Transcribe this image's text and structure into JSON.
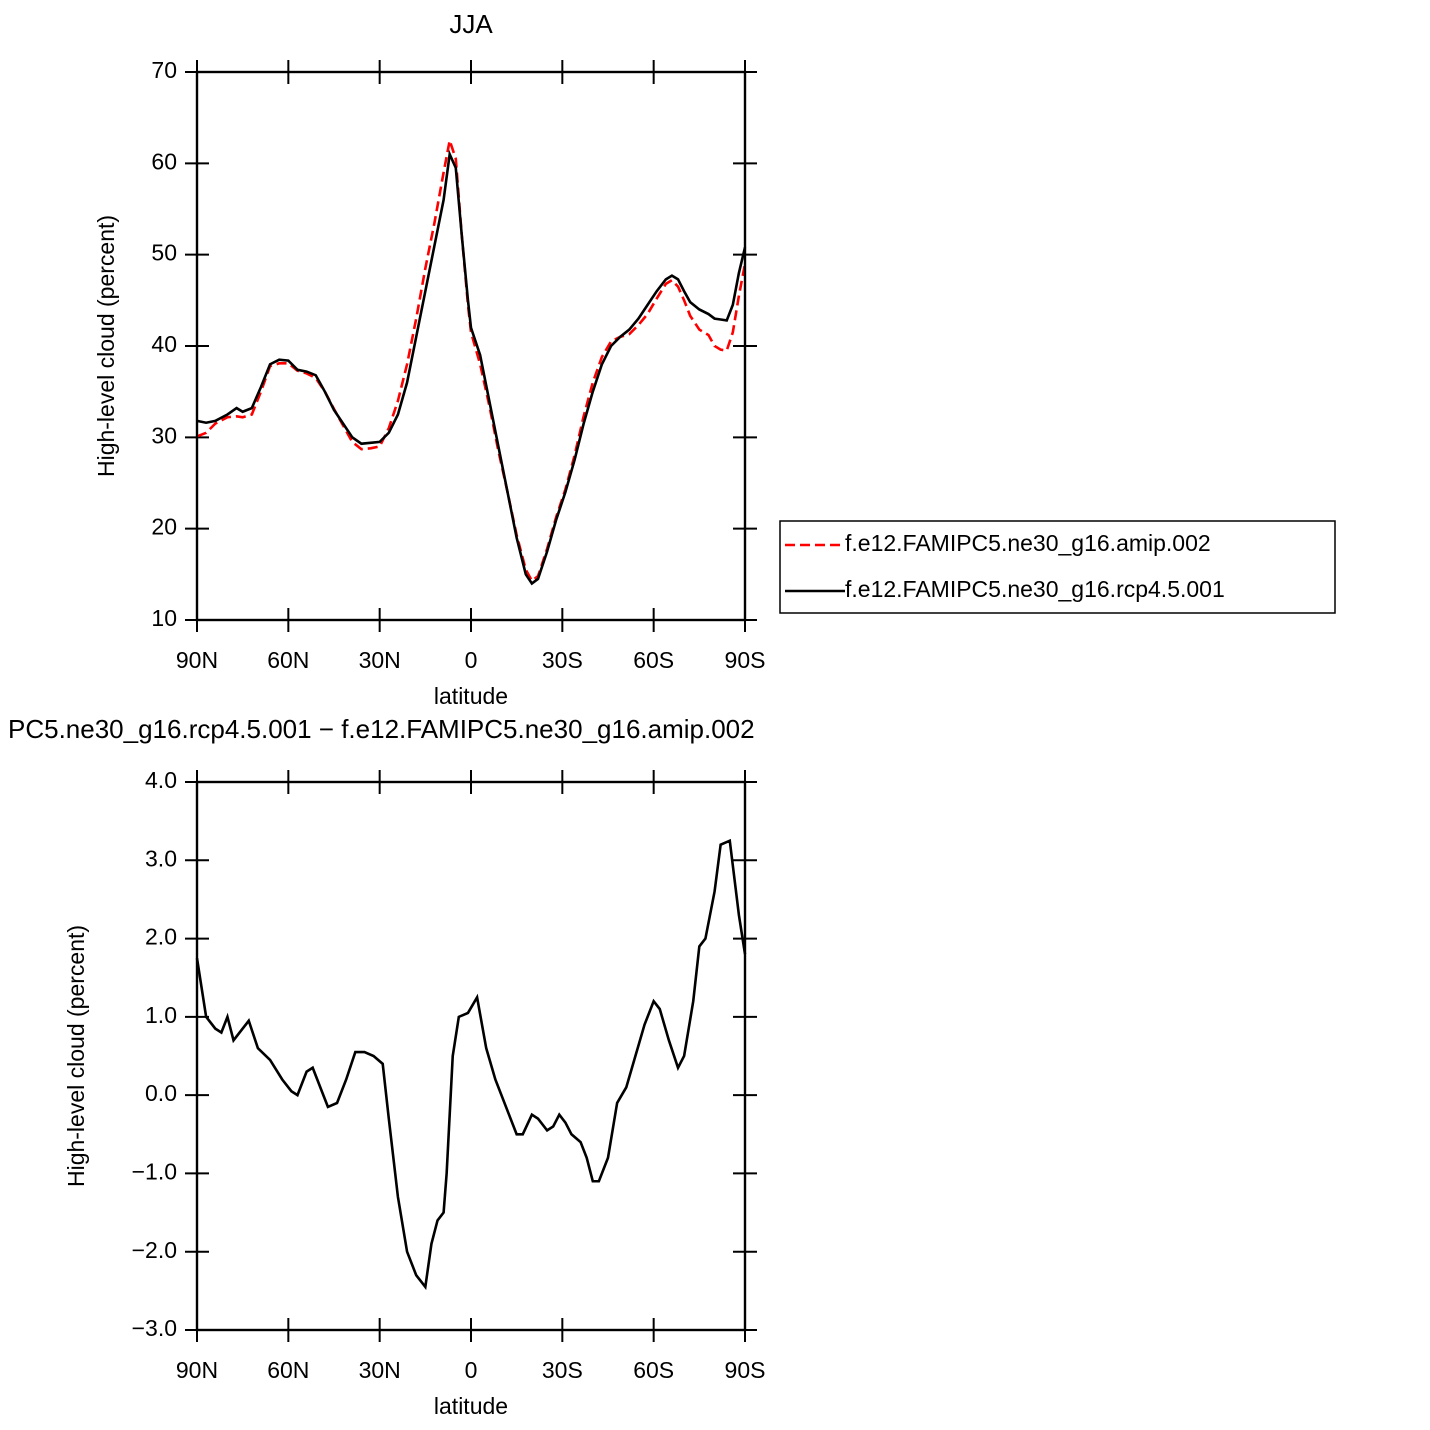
{
  "chart_data": [
    {
      "type": "line",
      "title": "JJA",
      "xlabel": "latitude",
      "ylabel": "High-level cloud (percent)",
      "xlim": [
        90,
        -90
      ],
      "ylim": [
        10,
        70
      ],
      "xticks": [
        {
          "value": 90,
          "label": "90N"
        },
        {
          "value": 60,
          "label": "60N"
        },
        {
          "value": 30,
          "label": "30N"
        },
        0,
        {
          "value": -30,
          "label": "30S"
        },
        {
          "value": -60,
          "label": "60S"
        },
        {
          "value": -90,
          "label": "90S"
        }
      ],
      "yticks": [
        10,
        20,
        30,
        40,
        50,
        60,
        70
      ],
      "legend": "right",
      "x": [
        90,
        87,
        84,
        80,
        77,
        75,
        72,
        69,
        66,
        63,
        60,
        57,
        54,
        51,
        48,
        45,
        42,
        39,
        36,
        33,
        30,
        27,
        24,
        21,
        18,
        15,
        12,
        9,
        7,
        5,
        3,
        1,
        0,
        -3,
        -6,
        -9,
        -12,
        -15,
        -18,
        -20,
        -22,
        -25,
        -28,
        -31,
        -34,
        -37,
        -40,
        -43,
        -46,
        -49,
        -52,
        -55,
        -58,
        -61,
        -64,
        -66,
        -68,
        -70,
        -72,
        -75,
        -78,
        -80,
        -82,
        -84,
        -86,
        -88,
        -90
      ],
      "series": [
        {
          "name": "f.e12.FAMIPC5.ne30_g16.amip.002",
          "color": "#ff0000",
          "line_style": "dashed",
          "values": [
            30.1,
            30.5,
            31.5,
            32.2,
            32.3,
            32.2,
            32.5,
            35,
            37.8,
            38.1,
            38.1,
            37.3,
            37.0,
            36.5,
            35.0,
            33.1,
            31.3,
            29.5,
            28.7,
            28.8,
            29.0,
            31.0,
            34.0,
            38.0,
            43.0,
            48.5,
            53.5,
            59.0,
            62.5,
            60.5,
            52,
            44.5,
            41.5,
            38,
            33.5,
            28.5,
            24,
            19.3,
            15.5,
            14.3,
            14.8,
            17.8,
            21.3,
            24.3,
            28,
            32.3,
            36,
            38.8,
            40.5,
            41,
            41.3,
            42.3,
            43.5,
            45.2,
            46.8,
            47.2,
            46.5,
            45,
            43.3,
            41.8,
            41.2,
            40,
            39.6,
            39.5,
            41.5,
            45.5,
            49
          ]
        },
        {
          "name": "f.e12.FAMIPC5.ne30_g16.rcp4.5.001",
          "color": "#000000",
          "line_style": "solid",
          "values": [
            31.8,
            31.6,
            31.8,
            32.5,
            33.2,
            32.8,
            33.2,
            35.5,
            38.0,
            38.5,
            38.4,
            37.4,
            37.2,
            36.8,
            35.0,
            33.0,
            31.5,
            30.0,
            29.3,
            29.4,
            29.5,
            30.5,
            32.5,
            36.0,
            41.0,
            46.0,
            51.0,
            56.0,
            61.0,
            59.5,
            52,
            45,
            42,
            39,
            34,
            29,
            24,
            19,
            15,
            14,
            14.5,
            17.5,
            21,
            24,
            27.5,
            31.5,
            35,
            38,
            40,
            41,
            41.8,
            43,
            44.5,
            46,
            47.3,
            47.7,
            47.3,
            46,
            44.8,
            44.0,
            43.5,
            43.0,
            42.9,
            42.8,
            44.5,
            48,
            50.8
          ]
        }
      ]
    },
    {
      "type": "line",
      "title": "PC5.ne30_g16.rcp4.5.001 − f.e12.FAMIPC5.ne30_g16.amip.002",
      "xlabel": "latitude",
      "ylabel": "High-level cloud (percent)",
      "xlim": [
        90,
        -90
      ],
      "ylim": [
        -3,
        4
      ],
      "xticks": [
        {
          "value": 90,
          "label": "90N"
        },
        {
          "value": 60,
          "label": "60N"
        },
        {
          "value": 30,
          "label": "30N"
        },
        0,
        {
          "value": -30,
          "label": "30S"
        },
        {
          "value": -60,
          "label": "60S"
        },
        {
          "value": -90,
          "label": "90S"
        }
      ],
      "yticks": [
        {
          "value": -3,
          "label": "−3.0"
        },
        {
          "value": -2,
          "label": "−2.0"
        },
        {
          "value": -1,
          "label": "−1.0"
        },
        {
          "value": 0,
          "label": "0.0"
        },
        {
          "value": 1,
          "label": "1.0"
        },
        {
          "value": 2,
          "label": "2.0"
        },
        {
          "value": 3,
          "label": "3.0"
        },
        {
          "value": 4,
          "label": "4.0"
        }
      ],
      "x": [
        90,
        87,
        84,
        82,
        80,
        78,
        75,
        73,
        70,
        66,
        62,
        59,
        57,
        54,
        52,
        49,
        47,
        44,
        41,
        38,
        35,
        32,
        29,
        27,
        24,
        21,
        18,
        15,
        13,
        11,
        9,
        8,
        6,
        4,
        1,
        -2,
        -5,
        -8,
        -12,
        -15,
        -17,
        -20,
        -22,
        -25,
        -27,
        -29,
        -31,
        -33,
        -36,
        -38,
        -40,
        -42,
        -45,
        -48,
        -51,
        -54,
        -57,
        -60,
        -62,
        -65,
        -68,
        -70,
        -73,
        -75,
        -77,
        -80,
        -82,
        -85,
        -88,
        -90
      ],
      "series": [
        {
          "color": "#000000",
          "line_style": "solid",
          "values": [
            1.75,
            1.0,
            0.85,
            0.8,
            1.0,
            0.7,
            0.85,
            0.95,
            0.6,
            0.45,
            0.2,
            0.05,
            0.0,
            0.3,
            0.35,
            0.05,
            -0.15,
            -0.1,
            0.2,
            0.55,
            0.55,
            0.5,
            0.4,
            -0.3,
            -1.3,
            -2.0,
            -2.3,
            -2.45,
            -1.9,
            -1.6,
            -1.5,
            -1.0,
            0.5,
            1.0,
            1.05,
            1.25,
            0.6,
            0.2,
            -0.2,
            -0.5,
            -0.5,
            -0.25,
            -0.3,
            -0.45,
            -0.4,
            -0.25,
            -0.35,
            -0.5,
            -0.6,
            -0.8,
            -1.1,
            -1.1,
            -0.8,
            -0.1,
            0.1,
            0.5,
            0.9,
            1.2,
            1.1,
            0.7,
            0.35,
            0.5,
            1.2,
            1.9,
            2.0,
            2.6,
            3.2,
            3.25,
            2.3,
            1.8
          ]
        }
      ]
    }
  ]
}
